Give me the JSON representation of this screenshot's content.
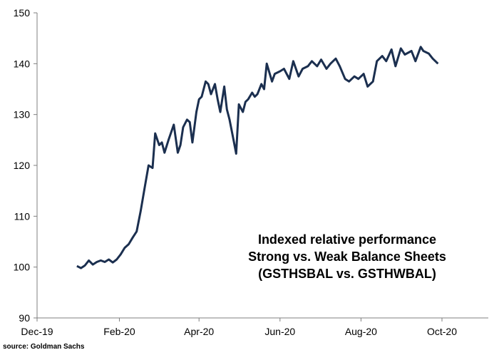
{
  "chart_data": {
    "type": "line",
    "title": "",
    "xlabel": "",
    "ylabel": "",
    "ylim": [
      90,
      150
    ],
    "yticks": [
      90,
      100,
      110,
      120,
      130,
      140,
      150
    ],
    "xticks": [
      "Dec-19",
      "Feb-20",
      "Apr-20",
      "Jun-20",
      "Aug-20",
      "Oct-20"
    ],
    "grid": false,
    "line_color": "#1b2f4f",
    "annotation": [
      "Indexed relative performance",
      "Strong vs. Weak Balance Sheets",
      "(GSTHSBAL vs. GSTHWBAL)"
    ],
    "series": [
      {
        "x": [
          "2019-12-31",
          "2020-01-03",
          "2020-01-06",
          "2020-01-09",
          "2020-01-12",
          "2020-01-15",
          "2020-01-18",
          "2020-01-21",
          "2020-01-24",
          "2020-01-27",
          "2020-01-30",
          "2020-02-02",
          "2020-02-05",
          "2020-02-08",
          "2020-02-11",
          "2020-02-14",
          "2020-02-17",
          "2020-02-20",
          "2020-02-23",
          "2020-02-26",
          "2020-02-28",
          "2020-03-02",
          "2020-03-04",
          "2020-03-06",
          "2020-03-09",
          "2020-03-11",
          "2020-03-13",
          "2020-03-16",
          "2020-03-18",
          "2020-03-20",
          "2020-03-23",
          "2020-03-25",
          "2020-03-27",
          "2020-03-30",
          "2020-04-01",
          "2020-04-03",
          "2020-04-06",
          "2020-04-08",
          "2020-04-10",
          "2020-04-13",
          "2020-04-15",
          "2020-04-17",
          "2020-04-20",
          "2020-04-22",
          "2020-04-24",
          "2020-04-27",
          "2020-04-29",
          "2020-05-01",
          "2020-05-04",
          "2020-05-06",
          "2020-05-08",
          "2020-05-11",
          "2020-05-13",
          "2020-05-15",
          "2020-05-18",
          "2020-05-20",
          "2020-05-22",
          "2020-05-26",
          "2020-05-28",
          "2020-06-01",
          "2020-06-04",
          "2020-06-08",
          "2020-06-11",
          "2020-06-15",
          "2020-06-18",
          "2020-06-22",
          "2020-06-25",
          "2020-06-29",
          "2020-07-02",
          "2020-07-06",
          "2020-07-09",
          "2020-07-13",
          "2020-07-16",
          "2020-07-20",
          "2020-07-23",
          "2020-07-27",
          "2020-07-30",
          "2020-08-03",
          "2020-08-06",
          "2020-08-10",
          "2020-08-13",
          "2020-08-17",
          "2020-08-20",
          "2020-08-24",
          "2020-08-27",
          "2020-08-31",
          "2020-09-03",
          "2020-09-08",
          "2020-09-11",
          "2020-09-15",
          "2020-09-17",
          "2020-09-21",
          "2020-09-24",
          "2020-09-28"
        ],
        "y": [
          100.2,
          99.8,
          100.3,
          101.3,
          100.5,
          101.0,
          101.3,
          101.0,
          101.5,
          100.9,
          101.5,
          102.5,
          103.8,
          104.5,
          105.8,
          107.0,
          111.0,
          115.5,
          120.0,
          119.5,
          126.3,
          124.0,
          124.5,
          122.5,
          125.0,
          126.5,
          128.0,
          122.5,
          124.0,
          127.5,
          129.0,
          128.5,
          124.5,
          130.5,
          133.0,
          133.5,
          136.5,
          136.0,
          134.0,
          136.0,
          133.0,
          130.5,
          135.5,
          131.0,
          129.0,
          125.0,
          122.3,
          132.0,
          130.5,
          132.5,
          133.0,
          134.3,
          133.5,
          134.0,
          136.0,
          135.0,
          140.0,
          136.5,
          138.0,
          138.5,
          139.0,
          137.0,
          140.5,
          137.5,
          139.0,
          139.5,
          140.5,
          139.5,
          140.8,
          139.0,
          140.0,
          141.0,
          139.5,
          137.0,
          136.5,
          137.5,
          137.0,
          138.0,
          135.5,
          136.5,
          140.5,
          141.5,
          140.5,
          142.8,
          139.5,
          143.0,
          141.8,
          142.5,
          140.5,
          143.3,
          142.5,
          142.0,
          141.0,
          140.0
        ]
      }
    ]
  },
  "source": "source: Goldman Sachs"
}
